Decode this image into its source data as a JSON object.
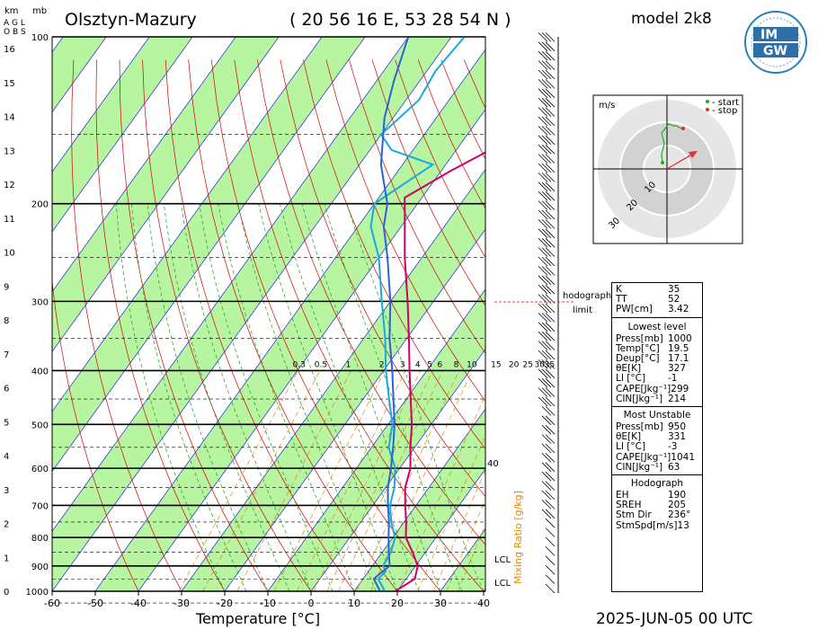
{
  "header": {
    "station": "Olsztyn-Mazury",
    "coords": "( 20 56 16  E, 53 28 54 N )",
    "model": "model 2k8",
    "logo_text": "IMGW"
  },
  "corner_labels": {
    "km": "km",
    "mb": "mb",
    "agl1": "A G L",
    "agl2": "O B S"
  },
  "footer": {
    "xaxis_title": "Temperature [°C]",
    "valid_time": "2025-JUN-05   00 UTC"
  },
  "mixing_ratio_label": "Mixing Ratio [g/kg]",
  "hodograph_limit": {
    "line1": "hodograph",
    "line2": "limit"
  },
  "colors": {
    "dry_band": "#b8f5a0",
    "isobar": "#000000",
    "isotherm": "#2b3fd9",
    "dry_adiabat": "#d40000",
    "moist_adiabat": "#1f9a1f",
    "mixing_ratio": "#e08a00",
    "temperature": "#d0006a",
    "dewpoint": "#1aa8e0",
    "parcel": "#2a62d8"
  },
  "hodograph": {
    "unit": "m/s",
    "legend_start": "- start",
    "legend_stop": "- stop",
    "ring_labels": [
      "10",
      "20",
      "30"
    ]
  },
  "indices": {
    "top": [
      {
        "label": "K",
        "value": "35"
      },
      {
        "label": "TT",
        "value": "52"
      },
      {
        "label": "PW[cm]",
        "value": "3.42"
      }
    ],
    "lowest_title": "Lowest level",
    "lowest": [
      {
        "label": "Press[mb]",
        "value": "1000"
      },
      {
        "label": "Temp[°C]",
        "value": "19.5"
      },
      {
        "label": "Deup[°C]",
        "value": "17.1"
      },
      {
        "label": "θE[K]",
        "value": "327"
      },
      {
        "label": "LI [°C]",
        "value": "-1"
      },
      {
        "label": "CAPE[Jkg⁻¹]",
        "value": "299"
      },
      {
        "label": "CIN[Jkg⁻¹]",
        "value": "214"
      }
    ],
    "unstable_title": "Most Unstable",
    "unstable": [
      {
        "label": "Press[mb]",
        "value": "950"
      },
      {
        "label": "θE[K]",
        "value": "331"
      },
      {
        "label": "LI [°C]",
        "value": "-3"
      },
      {
        "label": "CAPE[Jkg⁻¹]",
        "value": "1041"
      },
      {
        "label": "CIN[Jkg⁻¹]",
        "value": "63"
      }
    ],
    "hodo_title": "Hodograph",
    "hodo": [
      {
        "label": "EH",
        "value": "190"
      },
      {
        "label": "SREH",
        "value": "205"
      },
      {
        "label": "Stm Dir",
        "value": "236°"
      },
      {
        "label": "StmSpd[m/s]",
        "value": "13"
      }
    ]
  },
  "chart_data": {
    "type": "line",
    "x_ticks": [
      -60,
      -50,
      -40,
      -30,
      -20,
      -10,
      0,
      10,
      20,
      30,
      40
    ],
    "pressure_ticks": [
      100,
      200,
      300,
      400,
      500,
      600,
      700,
      800,
      900,
      1000
    ],
    "km_ticks": [
      0,
      1,
      2,
      3,
      4,
      5,
      6,
      7,
      8,
      9,
      10,
      11,
      12,
      13,
      14,
      15,
      16
    ],
    "mixing_ratio_labels": [
      "0.3",
      "0.5",
      "1",
      "2",
      "3",
      "4",
      "5",
      "6",
      "8",
      "10",
      "15",
      "20",
      "25",
      "30",
      "35"
    ],
    "mixing_ratio_extra": "40",
    "lcl_labels": [
      "LCL",
      "LCL"
    ],
    "series": [
      {
        "key": "temperature",
        "points": [
          [
            1000,
            19.5
          ],
          [
            950,
            22.0
          ],
          [
            900,
            20.5
          ],
          [
            850,
            17.0
          ],
          [
            800,
            13.0
          ],
          [
            750,
            10.5
          ],
          [
            700,
            7.5
          ],
          [
            650,
            4.5
          ],
          [
            600,
            2.5
          ],
          [
            550,
            -1.0
          ],
          [
            500,
            -4.5
          ],
          [
            450,
            -9.0
          ],
          [
            400,
            -14.0
          ],
          [
            350,
            -19.5
          ],
          [
            300,
            -26.0
          ],
          [
            250,
            -34.0
          ],
          [
            210,
            -41.0
          ],
          [
            195,
            -44.0
          ],
          [
            175,
            -38.0
          ],
          [
            150,
            -28.0
          ],
          [
            130,
            -19.0
          ],
          [
            115,
            -15.0
          ],
          [
            100,
            -12.0
          ]
        ]
      },
      {
        "key": "dewpoint",
        "points": [
          [
            1000,
            17.1
          ],
          [
            950,
            13.5
          ],
          [
            920,
            14.0
          ],
          [
            900,
            12.5
          ],
          [
            850,
            12.0
          ],
          [
            800,
            10.5
          ],
          [
            750,
            7.0
          ],
          [
            700,
            4.0
          ],
          [
            650,
            2.0
          ],
          [
            600,
            -1.0
          ],
          [
            550,
            -6.0
          ],
          [
            500,
            -9.0
          ],
          [
            450,
            -14.0
          ],
          [
            400,
            -19.5
          ],
          [
            350,
            -25.0
          ],
          [
            300,
            -32.0
          ],
          [
            250,
            -40.0
          ],
          [
            220,
            -47.0
          ],
          [
            200,
            -50.0
          ],
          [
            170,
            -43.0
          ],
          [
            160,
            -55.0
          ],
          [
            150,
            -60.0
          ],
          [
            130,
            -57.0
          ],
          [
            115,
            -58.0
          ],
          [
            100,
            -57.0
          ]
        ]
      },
      {
        "key": "parcel",
        "points": [
          [
            1000,
            16.0
          ],
          [
            950,
            12.5
          ],
          [
            930,
            13.0
          ],
          [
            900,
            14.0
          ],
          [
            850,
            11.5
          ],
          [
            800,
            9.0
          ],
          [
            750,
            6.5
          ],
          [
            700,
            3.5
          ],
          [
            650,
            0.5
          ],
          [
            600,
            -2.0
          ],
          [
            550,
            -5.0
          ],
          [
            500,
            -8.5
          ],
          [
            450,
            -13.0
          ],
          [
            400,
            -18.0
          ],
          [
            350,
            -24.0
          ],
          [
            300,
            -30.0
          ],
          [
            250,
            -38.0
          ],
          [
            220,
            -44.0
          ],
          [
            200,
            -47.0
          ],
          [
            170,
            -55.0
          ],
          [
            140,
            -62.0
          ],
          [
            120,
            -66.0
          ],
          [
            100,
            -70.0
          ]
        ]
      }
    ]
  }
}
